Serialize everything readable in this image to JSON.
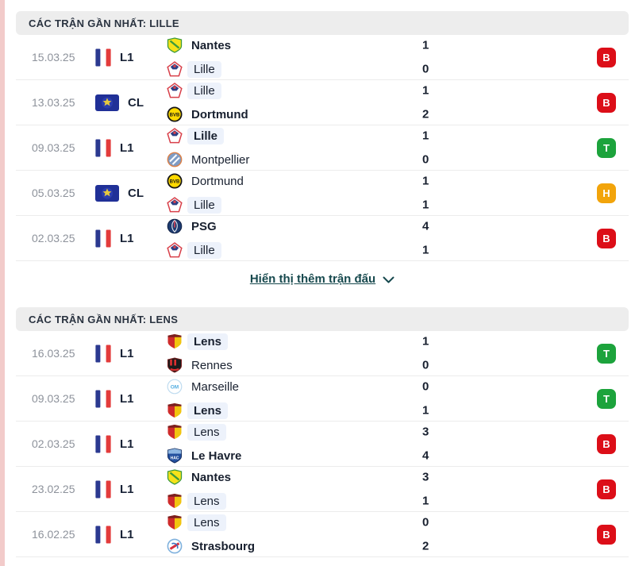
{
  "colors": {
    "header_bg": "#ededed",
    "date_text": "#8d929b",
    "team_text": "#18202f",
    "highlight_bg": "#edf2fb",
    "divider": "#ececec",
    "link": "#17494e",
    "left_strip": "#f2cbca"
  },
  "result_badges": {
    "B": "#dc0e18",
    "T": "#1ca33c",
    "H": "#f2a40b"
  },
  "show_more": {
    "label": "Hiển thị thêm trận đấu",
    "icon": "chevron-down-icon"
  },
  "sections": [
    {
      "title": "CÁC TRẬN GẦN NHẤT: LILLE",
      "show_more_after": true,
      "matches": [
        {
          "date": "15.03.25",
          "league": "L1",
          "league_icon": "fr-flag",
          "teams": [
            {
              "name": "Nantes",
              "logo": "nantes",
              "score": "1",
              "winner": true,
              "focus": false
            },
            {
              "name": "Lille",
              "logo": "lille",
              "score": "0",
              "winner": false,
              "focus": true
            }
          ],
          "result": "B"
        },
        {
          "date": "13.03.25",
          "league": "CL",
          "league_icon": "cl-badge",
          "teams": [
            {
              "name": "Lille",
              "logo": "lille",
              "score": "1",
              "winner": false,
              "focus": true
            },
            {
              "name": "Dortmund",
              "logo": "dortmund",
              "score": "2",
              "winner": true,
              "focus": false
            }
          ],
          "result": "B"
        },
        {
          "date": "09.03.25",
          "league": "L1",
          "league_icon": "fr-flag",
          "teams": [
            {
              "name": "Lille",
              "logo": "lille",
              "score": "1",
              "winner": true,
              "focus": true
            },
            {
              "name": "Montpellier",
              "logo": "montpellier",
              "score": "0",
              "winner": false,
              "focus": false
            }
          ],
          "result": "T"
        },
        {
          "date": "05.03.25",
          "league": "CL",
          "league_icon": "cl-badge",
          "teams": [
            {
              "name": "Dortmund",
              "logo": "dortmund",
              "score": "1",
              "winner": false,
              "focus": false
            },
            {
              "name": "Lille",
              "logo": "lille",
              "score": "1",
              "winner": false,
              "focus": true
            }
          ],
          "result": "H"
        },
        {
          "date": "02.03.25",
          "league": "L1",
          "league_icon": "fr-flag",
          "teams": [
            {
              "name": "PSG",
              "logo": "psg",
              "score": "4",
              "winner": true,
              "focus": false
            },
            {
              "name": "Lille",
              "logo": "lille",
              "score": "1",
              "winner": false,
              "focus": true
            }
          ],
          "result": "B"
        }
      ]
    },
    {
      "title": "CÁC TRẬN GẦN NHẤT: LENS",
      "show_more_after": false,
      "matches": [
        {
          "date": "16.03.25",
          "league": "L1",
          "league_icon": "fr-flag",
          "teams": [
            {
              "name": "Lens",
              "logo": "lens",
              "score": "1",
              "winner": true,
              "focus": true
            },
            {
              "name": "Rennes",
              "logo": "rennes",
              "score": "0",
              "winner": false,
              "focus": false
            }
          ],
          "result": "T"
        },
        {
          "date": "09.03.25",
          "league": "L1",
          "league_icon": "fr-flag",
          "teams": [
            {
              "name": "Marseille",
              "logo": "marseille",
              "score": "0",
              "winner": false,
              "focus": false
            },
            {
              "name": "Lens",
              "logo": "lens",
              "score": "1",
              "winner": true,
              "focus": true
            }
          ],
          "result": "T"
        },
        {
          "date": "02.03.25",
          "league": "L1",
          "league_icon": "fr-flag",
          "teams": [
            {
              "name": "Lens",
              "logo": "lens",
              "score": "3",
              "winner": false,
              "focus": true
            },
            {
              "name": "Le Havre",
              "logo": "lehavre",
              "score": "4",
              "winner": true,
              "focus": false
            }
          ],
          "result": "B"
        },
        {
          "date": "23.02.25",
          "league": "L1",
          "league_icon": "fr-flag",
          "teams": [
            {
              "name": "Nantes",
              "logo": "nantes",
              "score": "3",
              "winner": true,
              "focus": false
            },
            {
              "name": "Lens",
              "logo": "lens",
              "score": "1",
              "winner": false,
              "focus": true
            }
          ],
          "result": "B"
        },
        {
          "date": "16.02.25",
          "league": "L1",
          "league_icon": "fr-flag",
          "teams": [
            {
              "name": "Lens",
              "logo": "lens",
              "score": "0",
              "winner": false,
              "focus": true
            },
            {
              "name": "Strasbourg",
              "logo": "strasbourg",
              "score": "2",
              "winner": true,
              "focus": false
            }
          ],
          "result": "B"
        }
      ]
    }
  ]
}
